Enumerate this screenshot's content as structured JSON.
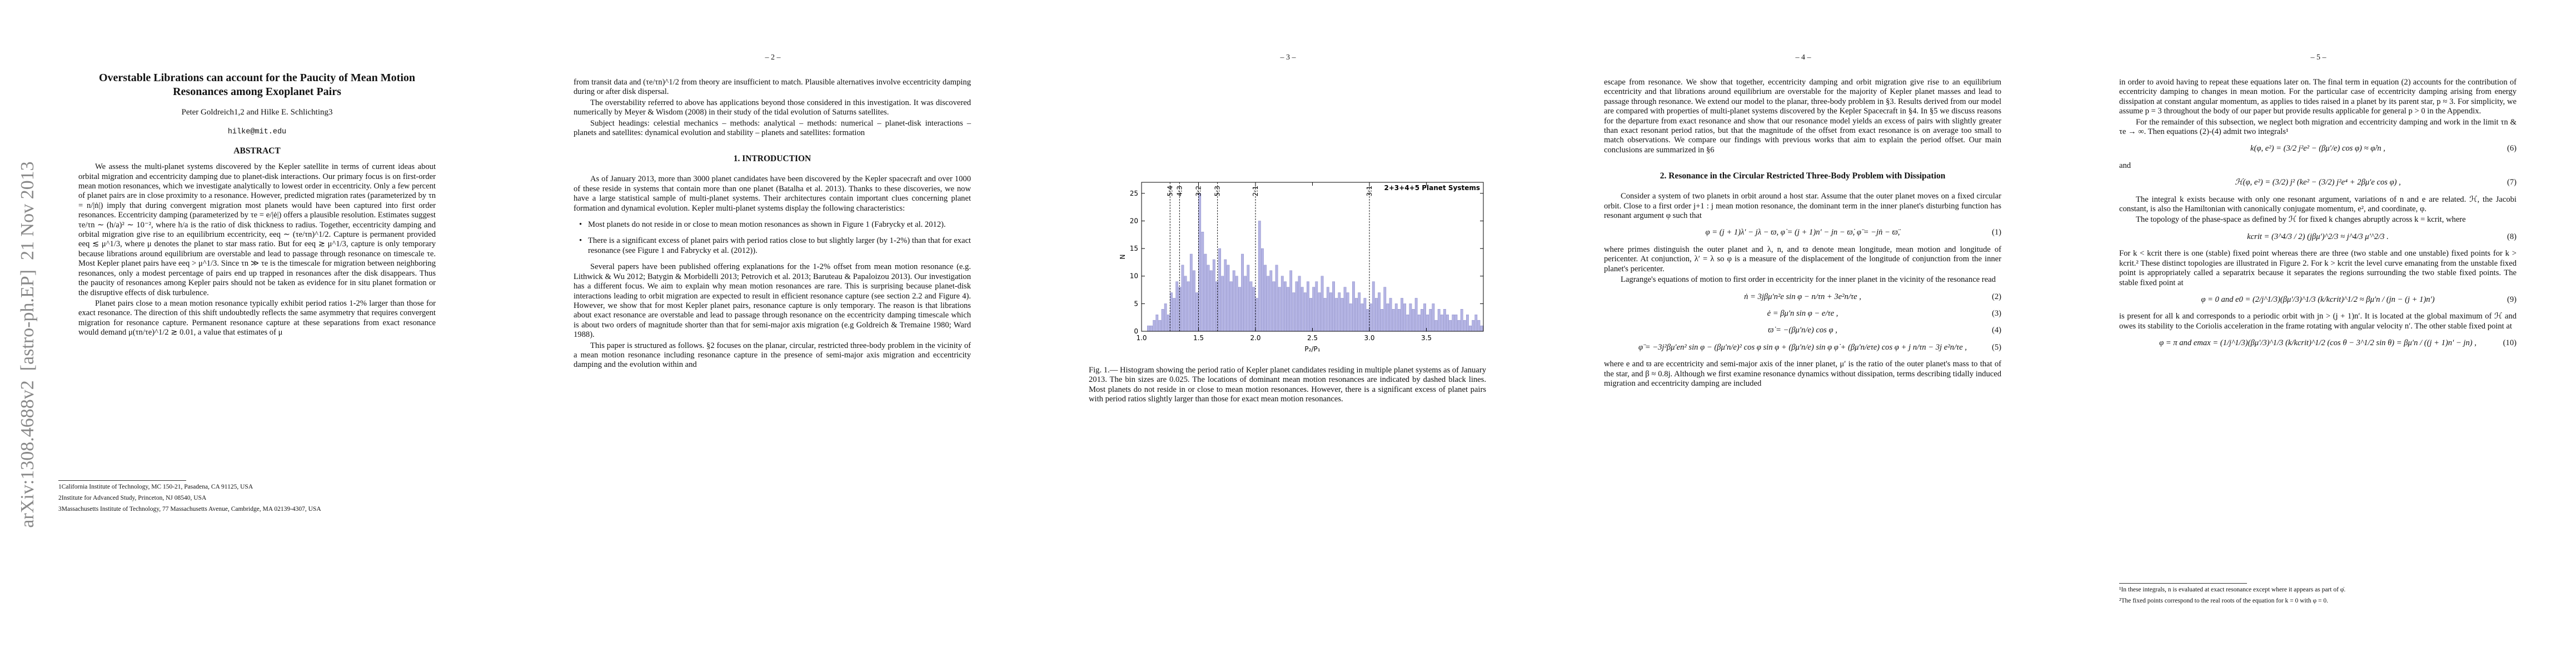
{
  "side_stamp": "arXiv:1308.4688v2  [astro-ph.EP]  21 Nov 2013",
  "pages": [
    {
      "title": "Overstable Librations can account for the Paucity of Mean Motion Resonances among Exoplanet Pairs",
      "authors": "Peter Goldreich1,2 and Hilke E. Schlichting3",
      "email": "hilke@mit.edu",
      "abstract_heading": "ABSTRACT",
      "blocks": [
        {
          "p": "We assess the multi-planet systems discovered by the Kepler satellite in terms of current ideas about orbital migration and eccentricity damping due to planet-disk interactions. Our primary focus is on first-order mean motion resonances, which we investigate analytically to lowest order in eccentricity. Only a few percent of planet pairs are in close proximity to a resonance. However, predicted migration rates (parameterized by τn = n/|ṅ|) imply that during convergent migration most planets would have been captured into first order resonances. Eccentricity damping (parameterized by τe = e/|ė|) offers a plausible resolution. Estimates suggest τe/τn ∼ (h/a)² ∼ 10⁻², where h/a is the ratio of disk thickness to radius. Together, eccentricity damping and orbital migration give rise to an equilibrium eccentricity, eeq ∼ (τe/τn)^1/2. Capture is permanent provided eeq ≲ μ^1/3, where μ denotes the planet to star mass ratio. But for eeq ≳ μ^1/3, capture is only temporary because librations around equilibrium are overstable and lead to passage through resonance on timescale τe. Most Kepler planet pairs have eeq > μ^1/3. Since τn ≫ τe is the timescale for migration between neighboring resonances, only a modest percentage of pairs end up trapped in resonances after the disk disappears. Thus the paucity of resonances among Kepler pairs should not be taken as evidence for in situ planet formation or the disruptive effects of disk turbulence."
        },
        {
          "p": "Planet pairs close to a mean motion resonance typically exhibit period ratios 1-2% larger than those for exact resonance. The direction of this shift undoubtedly reflects the same asymmetry that requires convergent migration for resonance capture. Permanent resonance capture at these separations from exact resonance would demand μ(τn/τe)^1/2 ≳ 0.01, a value that estimates of μ"
        }
      ],
      "footnotes": [
        "1California Institute of Technology, MC 150-21, Pasadena, CA 91125, USA",
        "2Institute for Advanced Study, Princeton, NJ 08540, USA",
        "3Massachusetts Institute of Technology, 77 Massachusetts Avenue, Cambridge, MA 02139-4307, USA"
      ]
    },
    {
      "number": "– 2 –",
      "blocks": [
        {
          "c": "from transit data and (τe/τn)^1/2 from theory are insufficient to match. Plausible alternatives involve eccentricity damping during or after disk dispersal."
        },
        {
          "p": "The overstability referred to above has applications beyond those considered in this investigation. It was discovered numerically by Meyer & Wisdom (2008) in their study of the tidal evolution of Saturns satellites."
        },
        {
          "p": "Subject headings: celestial mechanics – methods: analytical – methods: numerical – planet-disk interactions – planets and satellites: dynamical evolution and stability – planets and satellites: formation"
        },
        {
          "h": "1.   INTRODUCTION"
        },
        {
          "p": "As of January 2013, more than 3000 planet candidates have been discovered by the Kepler spacecraft and over 1000 of these reside in systems that contain more than one planet (Batalha et al. 2013). Thanks to these discoveries, we now have a large statistical sample of multi-planet systems. Their architectures contain important clues concerning planet formation and dynamical evolution. Kepler multi-planet systems display the following characteristics:"
        },
        {
          "bullet": "Most planets do not reside in or close to mean motion resonances as shown in Figure 1 (Fabrycky et al. 2012)."
        },
        {
          "bullet": "There is a significant excess of planet pairs with period ratios close to but slightly larger (by 1-2%) than that for exact resonance (see Figure 1 and Fabrycky et al. (2012))."
        },
        {
          "p": "Several papers have been published offering explanations for the 1-2% offset from mean motion resonance (e.g. Lithwick & Wu 2012; Batygin & Morbidelli 2013; Petrovich et al. 2013; Baruteau & Papaloizou 2013). Our investigation has a different focus. We aim to explain why mean motion resonances are rare. This is surprising because planet-disk interactions leading to orbit migration are expected to result in efficient resonance capture (see section 2.2 and Figure 4). However, we show that for most Kepler planet pairs, resonance capture is only temporary. The reason is that librations about exact resonance are overstable and lead to passage through resonance on the eccentricity damping timescale which is about two orders of magnitude shorter than that for semi-major axis migration (e.g Goldreich & Tremaine 1980; Ward 1988)."
        },
        {
          "p": "This paper is structured as follows. §2 focuses on the planar, circular, restricted three-body problem in the vicinity of a mean motion resonance including resonance capture in the presence of semi-major axis migration and eccentricity damping and the evolution within and"
        }
      ]
    },
    {
      "number": "– 3 –",
      "chart_data": {
        "type": "histogram",
        "legend": "2+3+4+5 Planet Systems",
        "xlabel": "P₂/P₁",
        "ylabel": "N",
        "color": "#b4b4e4",
        "edge_color": "#8a8ac8",
        "bins": [
          1,
          1.025,
          1.05,
          1.075,
          1.1,
          1.125,
          1.15,
          1.175,
          1.2,
          1.225,
          1.25,
          1.275,
          1.3,
          1.325,
          1.35,
          1.375,
          1.4,
          1.425,
          1.45,
          1.475,
          1.5,
          1.525,
          1.55,
          1.575,
          1.6,
          1.625,
          1.65,
          1.675,
          1.7,
          1.725,
          1.75,
          1.775,
          1.8,
          1.825,
          1.85,
          1.875,
          1.9,
          1.925,
          1.95,
          1.975,
          2,
          2.025,
          2.05,
          2.075,
          2.1,
          2.125,
          2.15,
          2.175,
          2.2,
          2.225,
          2.25,
          2.275,
          2.3,
          2.325,
          2.35,
          2.375,
          2.4,
          2.425,
          2.45,
          2.475,
          2.5,
          2.525,
          2.55,
          2.575,
          2.6,
          2.625,
          2.65,
          2.675,
          2.7,
          2.725,
          2.75,
          2.775,
          2.8,
          2.825,
          2.85,
          2.875,
          2.9,
          2.925,
          2.95,
          2.975,
          3,
          3.025,
          3.05,
          3.075,
          3.1,
          3.125,
          3.15,
          3.175,
          3.2,
          3.225,
          3.25,
          3.275,
          3.3,
          3.325,
          3.35,
          3.375,
          3.4,
          3.425,
          3.45,
          3.475,
          3.5,
          3.525,
          3.55,
          3.575,
          3.6,
          3.625,
          3.65,
          3.675,
          3.7,
          3.725,
          3.75,
          3.775,
          3.8,
          3.825,
          3.85,
          3.875,
          3.9,
          3.925,
          3.95,
          3.975,
          4
        ],
        "values": [
          0,
          0,
          1,
          1,
          2,
          3,
          2,
          4,
          5,
          3,
          7,
          6,
          9,
          8,
          12,
          10,
          9,
          14,
          11,
          7,
          25,
          18,
          14,
          12,
          11,
          13,
          9,
          15,
          10,
          13,
          12,
          9,
          11,
          10,
          8,
          14,
          10,
          12,
          9,
          8,
          6,
          20,
          15,
          12,
          10,
          11,
          9,
          12,
          8,
          10,
          9,
          8,
          11,
          7,
          9,
          10,
          8,
          7,
          9,
          6,
          8,
          9,
          7,
          10,
          6,
          8,
          7,
          9,
          6,
          7,
          6,
          8,
          7,
          5,
          9,
          6,
          7,
          5,
          6,
          4,
          5,
          9,
          6,
          7,
          4,
          8,
          5,
          6,
          4,
          5,
          4,
          6,
          5,
          3,
          5,
          4,
          6,
          3,
          4,
          5,
          3,
          4,
          5,
          2,
          4,
          3,
          4,
          3,
          2,
          3,
          3,
          2,
          4,
          2,
          3,
          1,
          2,
          3,
          2,
          1
        ],
        "resonances": [
          {
            "value": 1.25,
            "label": "5:4"
          },
          {
            "value": 1.3333,
            "label": "4:3"
          },
          {
            "value": 1.5,
            "label": "3:2"
          },
          {
            "value": 1.6667,
            "label": "5:3"
          },
          {
            "value": 2,
            "label": "2:1"
          },
          {
            "value": 3,
            "label": "3:1"
          }
        ],
        "xlim": [
          1,
          4
        ],
        "ylim": [
          0,
          27
        ],
        "xticks": [
          {
            "value": 1,
            "label": "1.0"
          },
          1.5,
          {
            "value": 2,
            "label": "2.0"
          },
          2.5,
          {
            "value": 3,
            "label": "3.0"
          },
          3.5
        ],
        "yticks": [
          0,
          5,
          10,
          15,
          20,
          25
        ]
      },
      "caption": "Fig. 1.— Histogram showing the period ratio of Kepler planet candidates residing in multiple planet systems as of January 2013. The bin sizes are 0.025. The locations of dominant mean motion resonances are indicated by dashed black lines. Most planets do not reside in or close to mean motion resonances. However, there is a significant excess of planet pairs with period ratios slightly larger than those for exact mean motion resonances."
    },
    {
      "number": "– 4 –",
      "blocks": [
        {
          "c": "escape from resonance. We show that together, eccentricity damping and orbit migration give rise to an equilibrium eccentricity and that librations around equilibrium are overstable for the majority of Kepler planet masses and lead to passage through resonance. We extend our model to the planar, three-body problem in §3. Results derived from our model are compared with properties of multi-planet systems discovered by the Kepler Spacecraft in §4. In §5 we discuss reasons for the departure from exact resonance and show that our resonance model yields an excess of pairs with slightly greater than exact resonant period ratios, but that the magnitude of the offset from exact resonance is on average too small to match observations. We compare our findings with previous works that aim to explain the period offset. Our main conclusions are summarized in §6"
        },
        {
          "h": "2.   Resonance in the Circular Restricted Three-Body Problem with Dissipation"
        },
        {
          "p": "Consider a system of two planets in orbit around a host star. Assume that the outer planet moves on a fixed circular orbit. Close to a first order j+1 : j mean motion resonance, the dominant term in the inner planet's disturbing function has resonant argument φ such that"
        },
        {
          "eq": "φ = (j + 1)λ′ − jλ − ϖ,     φ̇ = (j + 1)n′ − jn − ϖ̇,     φ̈ = −jṅ − ϖ̈,",
          "num": "(1)"
        },
        {
          "c": "where primes distinguish the outer planet and λ, n, and ϖ denote mean longitude, mean motion and longitude of pericenter. At conjunction, λ′ = λ so φ is a measure of the displacement of the longitude of conjunction from the inner planet's pericenter."
        },
        {
          "p": "Lagrange's equations of motion to first order in eccentricity for the inner planet in the vicinity of the resonance read"
        },
        {
          "eq": "ṅ = 3jβμ′n²e sin φ − n/τn + 3e²n/τe ,",
          "num": "(2)"
        },
        {
          "eq": "ė = βμ′n sin φ − e/τe ,",
          "num": "(3)"
        },
        {
          "eq": "ϖ̇ = −(βμ′n/e) cos φ ,",
          "num": "(4)"
        },
        {
          "eq": "φ̈ = −3j²βμ′en² sin φ − (βμ′n/e)² cos φ sin φ + (βμ′n/e) sin φ φ̇ + (βμ′n/eτe) cos φ + j n/τn − 3j e²n/τe ,",
          "num": "(5)"
        },
        {
          "c": "where e and ϖ are eccentricity and semi-major axis of the inner planet, μ′ is the ratio of the outer planet's mass to that of the star, and β ≈ 0.8j. Although we first examine resonance dynamics without dissipation, terms describing tidally induced migration and eccentricity damping are included"
        }
      ]
    },
    {
      "number": "– 5 –",
      "blocks": [
        {
          "c": "in order to avoid having to repeat these equations later on. The final term in equation (2) accounts for the contribution of eccentricity damping to changes in mean motion. For the particular case of eccentricity damping arising from energy dissipation at constant angular momentum, as applies to tides raised in a planet by its parent star, p ≈ 3. For simplicity, we assume p = 3 throughout the body of our paper but provide results applicable for general p > 0 in the Appendix."
        },
        {
          "p": "For the remainder of this subsection, we neglect both migration and eccentricity damping and work in the limit τn & τe → ∞. Then equations (2)-(4) admit two integrals¹"
        },
        {
          "eq": "k(φ, e²) = (3/2 j²e² − (βμ′/e) cos φ) ≈ φ̇/n ,",
          "num": "(6)"
        },
        {
          "c": "and"
        },
        {
          "eq": "ℋ(φ, e²) = (3/2) j² (ke² − (3/2) j²e⁴ + 2βμ′e cos φ) ,",
          "num": "(7)"
        },
        {
          "p": "The integral k exists because with only one resonant argument, variations of n and e are related. ℋ, the Jacobi constant, is also the Hamiltonian with canonically conjugate momentum, e², and coordinate, φ."
        },
        {
          "p": "The topology of the phase-space as defined by ℋ for fixed k changes abruptly across k = kcrit, where"
        },
        {
          "eq": "kcrit = (3^4/3 / 2) (jβμ′)^2/3 ≈ j^4/3 μ′^2/3 .",
          "num": "(8)"
        },
        {
          "c": "For k < kcrit there is one (stable) fixed point whereas there are three (two stable and one unstable) fixed points for k > kcrit.² These distinct topologies are illustrated in Figure 2. For k > kcrit the level curve emanating from the unstable fixed point is appropriately called a separatrix because it separates the regions surrounding the two stable fixed points. The stable fixed point at"
        },
        {
          "eq": "φ = 0   and   e0 = (2/j^1/3)(βμ′/3)^1/3 (k/kcrit)^1/2 ≈ βμ′n / (jn − (j + 1)n′)",
          "num": "(9)"
        },
        {
          "c": "is present for all k and corresponds to a periodic orbit with jn > (j + 1)n′. It is located at the global maximum of ℋ and owes its stability to the Coriolis acceleration in the frame rotating with angular velocity n′. The other stable fixed point at"
        },
        {
          "eq": "φ = π   and   emax = (1/j^1/3)(βμ′/3)^1/3 (k/kcrit)^1/2 (cos θ − 3^1/2 sin θ) = βμ′n / ((j + 1)n′ − jn) ,",
          "num": "(10)"
        }
      ],
      "footnotes": [
        "¹In these integrals, n is evaluated at exact resonance except where it appears as part of φ̇.",
        "²The fixed points correspond to the real roots of the equation for k = 0 with φ = 0."
      ]
    }
  ]
}
